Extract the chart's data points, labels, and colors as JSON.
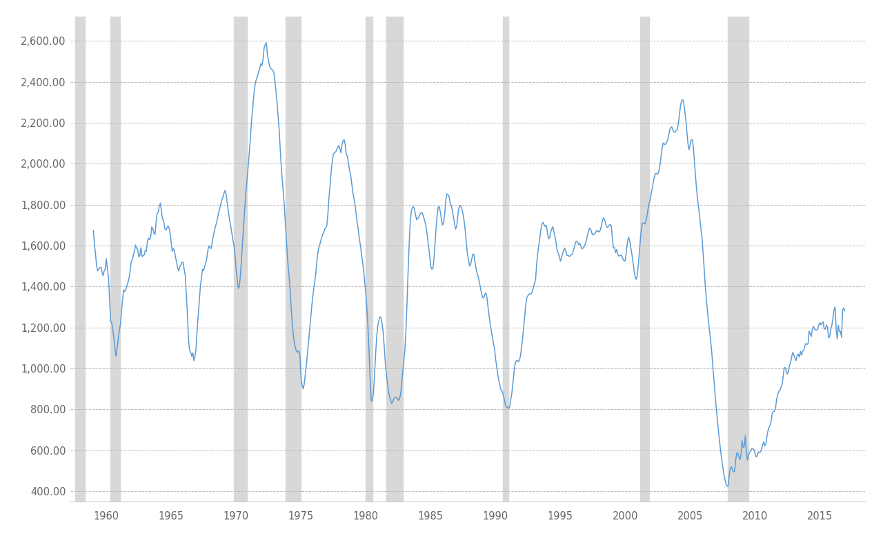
{
  "line_color": "#5B9BD5",
  "recession_color": "#D8D8D8",
  "background_color": "#FFFFFF",
  "grid_color": "#BBBBBB",
  "text_color": "#666666",
  "line_width": 1.1,
  "ylim": [
    350,
    2720
  ],
  "yticks": [
    400,
    600,
    800,
    1000,
    1200,
    1400,
    1600,
    1800,
    2000,
    2200,
    2400,
    2600
  ],
  "xlim": [
    1957.25,
    2018.5
  ],
  "xticks": [
    1960,
    1965,
    1970,
    1975,
    1980,
    1985,
    1990,
    1995,
    2000,
    2005,
    2010,
    2015
  ],
  "recessions": [
    [
      1957.583,
      1958.333
    ],
    [
      1960.333,
      1961.083
    ],
    [
      1969.833,
      1970.833
    ],
    [
      1973.833,
      1975.0
    ],
    [
      1980.0,
      1980.5
    ],
    [
      1981.583,
      1982.833
    ],
    [
      1990.583,
      1991.0
    ],
    [
      2001.167,
      2001.833
    ],
    [
      2007.917,
      2009.5
    ]
  ],
  "houst": [
    1674,
    1608,
    1558,
    1503,
    1476,
    1484,
    1492,
    1495,
    1472,
    1453,
    1476,
    1486,
    1536,
    1484,
    1445,
    1336,
    1231,
    1222,
    1191,
    1148,
    1096,
    1059,
    1097,
    1146,
    1185,
    1213,
    1274,
    1334,
    1383,
    1375,
    1385,
    1402,
    1419,
    1441,
    1474,
    1522,
    1529,
    1554,
    1572,
    1603,
    1587,
    1581,
    1545,
    1552,
    1590,
    1547,
    1550,
    1554,
    1576,
    1573,
    1618,
    1637,
    1628,
    1641,
    1691,
    1683,
    1660,
    1654,
    1712,
    1758,
    1763,
    1793,
    1808,
    1766,
    1727,
    1724,
    1684,
    1676,
    1685,
    1695,
    1688,
    1659,
    1616,
    1572,
    1585,
    1575,
    1543,
    1519,
    1489,
    1476,
    1498,
    1507,
    1519,
    1518,
    1484,
    1454,
    1362,
    1263,
    1143,
    1089,
    1079,
    1059,
    1076,
    1038,
    1059,
    1097,
    1189,
    1258,
    1328,
    1401,
    1446,
    1484,
    1478,
    1498,
    1518,
    1541,
    1579,
    1599,
    1589,
    1586,
    1620,
    1648,
    1673,
    1693,
    1714,
    1738,
    1762,
    1783,
    1804,
    1827,
    1839,
    1859,
    1870,
    1845,
    1800,
    1762,
    1727,
    1697,
    1665,
    1629,
    1603,
    1559,
    1487,
    1437,
    1391,
    1400,
    1453,
    1532,
    1618,
    1697,
    1780,
    1857,
    1910,
    1974,
    2036,
    2104,
    2187,
    2249,
    2310,
    2365,
    2398,
    2417,
    2431,
    2450,
    2468,
    2488,
    2481,
    2513,
    2568,
    2582,
    2591,
    2532,
    2503,
    2476,
    2467,
    2461,
    2456,
    2444,
    2401,
    2349,
    2293,
    2222,
    2155,
    2055,
    1973,
    1903,
    1839,
    1762,
    1676,
    1589,
    1511,
    1452,
    1383,
    1294,
    1220,
    1160,
    1119,
    1098,
    1083,
    1079,
    1085,
    1068,
    960,
    920,
    900,
    921,
    968,
    1015,
    1073,
    1130,
    1185,
    1244,
    1303,
    1355,
    1395,
    1432,
    1479,
    1539,
    1576,
    1597,
    1616,
    1638,
    1653,
    1662,
    1680,
    1685,
    1700,
    1759,
    1839,
    1898,
    1966,
    2013,
    2047,
    2054,
    2057,
    2068,
    2079,
    2089,
    2075,
    2053,
    2094,
    2112,
    2117,
    2091,
    2046,
    2036,
    1998,
    1968,
    1945,
    1903,
    1860,
    1832,
    1800,
    1757,
    1714,
    1678,
    1636,
    1601,
    1559,
    1521,
    1479,
    1420,
    1368,
    1295,
    1201,
    1082,
    947,
    841,
    840,
    879,
    960,
    1064,
    1149,
    1205,
    1231,
    1252,
    1250,
    1218,
    1180,
    1109,
    1030,
    972,
    928,
    887,
    861,
    843,
    828,
    838,
    853,
    857,
    858,
    857,
    844,
    848,
    870,
    912,
    975,
    1030,
    1082,
    1175,
    1303,
    1456,
    1597,
    1706,
    1765,
    1786,
    1790,
    1779,
    1751,
    1726,
    1734,
    1737,
    1752,
    1759,
    1762,
    1748,
    1730,
    1711,
    1683,
    1642,
    1597,
    1555,
    1499,
    1485,
    1487,
    1534,
    1607,
    1687,
    1750,
    1788,
    1790,
    1762,
    1726,
    1700,
    1714,
    1757,
    1822,
    1852,
    1849,
    1840,
    1810,
    1796,
    1772,
    1741,
    1710,
    1681,
    1692,
    1741,
    1782,
    1795,
    1791,
    1777,
    1751,
    1718,
    1672,
    1609,
    1560,
    1530,
    1500,
    1509,
    1534,
    1559,
    1556,
    1519,
    1487,
    1464,
    1447,
    1421,
    1394,
    1368,
    1347,
    1344,
    1361,
    1369,
    1345,
    1301,
    1259,
    1218,
    1186,
    1155,
    1124,
    1099,
    1048,
    1009,
    972,
    942,
    917,
    894,
    889,
    873,
    851,
    825,
    810,
    812,
    803,
    811,
    845,
    876,
    926,
    978,
    1019,
    1035,
    1040,
    1032,
    1038,
    1060,
    1101,
    1147,
    1202,
    1260,
    1313,
    1346,
    1356,
    1362,
    1365,
    1365,
    1376,
    1397,
    1416,
    1433,
    1509,
    1563,
    1600,
    1641,
    1680,
    1706,
    1714,
    1701,
    1693,
    1699,
    1662,
    1633,
    1639,
    1665,
    1682,
    1692,
    1668,
    1641,
    1614,
    1576,
    1563,
    1547,
    1524,
    1543,
    1561,
    1579,
    1587,
    1572,
    1552,
    1553,
    1548,
    1548,
    1555,
    1558,
    1578,
    1594,
    1617,
    1622,
    1616,
    1604,
    1611,
    1594,
    1583,
    1589,
    1595,
    1607,
    1627,
    1650,
    1671,
    1685,
    1680,
    1661,
    1652,
    1655,
    1660,
    1668,
    1674,
    1669,
    1667,
    1678,
    1700,
    1726,
    1736,
    1724,
    1703,
    1690,
    1690,
    1699,
    1703,
    1698,
    1636,
    1589,
    1590,
    1565,
    1581,
    1555,
    1549,
    1551,
    1554,
    1545,
    1534,
    1523,
    1529,
    1574,
    1617,
    1641,
    1626,
    1594,
    1560,
    1521,
    1482,
    1452,
    1435,
    1453,
    1503,
    1566,
    1636,
    1688,
    1709,
    1710,
    1706,
    1717,
    1744,
    1778,
    1805,
    1825,
    1856,
    1883,
    1914,
    1940,
    1952,
    1951,
    1950,
    1963,
    1991,
    2032,
    2074,
    2101,
    2096,
    2094,
    2103,
    2113,
    2134,
    2164,
    2176,
    2180,
    2165,
    2154,
    2154,
    2162,
    2166,
    2194,
    2236,
    2282,
    2307,
    2313,
    2298,
    2258,
    2214,
    2153,
    2097,
    2068,
    2093,
    2118,
    2117,
    2079,
    2008,
    1934,
    1872,
    1817,
    1778,
    1728,
    1680,
    1634,
    1561,
    1481,
    1402,
    1334,
    1277,
    1224,
    1179,
    1130,
    1075,
    1007,
    938,
    874,
    815,
    756,
    703,
    651,
    604,
    561,
    524,
    489,
    461,
    438,
    425,
    423,
    471,
    510,
    519,
    506,
    494,
    496,
    547,
    585,
    588,
    569,
    554,
    577,
    647,
    614,
    617,
    671,
    590,
    552,
    577,
    590,
    597,
    607,
    607,
    602,
    585,
    568,
    572,
    591,
    589,
    592,
    604,
    625,
    642,
    622,
    629,
    669,
    697,
    713,
    722,
    748,
    783,
    790,
    790,
    810,
    850,
    872,
    888,
    891,
    908,
    922,
    959,
    1005,
    1002,
    981,
    972,
    991,
    1018,
    1031,
    1060,
    1078,
    1063,
    1050,
    1038,
    1066,
    1069,
    1055,
    1083,
    1064,
    1084,
    1088,
    1109,
    1122,
    1117,
    1119,
    1183,
    1170,
    1156,
    1190,
    1205,
    1194,
    1187,
    1187,
    1193,
    1214,
    1223,
    1213,
    1222,
    1227,
    1192,
    1193,
    1211,
    1202,
    1149,
    1155,
    1190,
    1210,
    1243,
    1285,
    1300,
    1194,
    1144,
    1211,
    1179,
    1180,
    1152,
    1287,
    1296,
    1281
  ]
}
